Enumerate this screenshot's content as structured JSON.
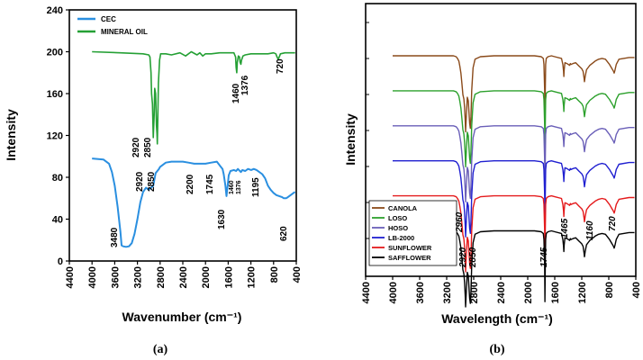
{
  "chart_data": [
    {
      "type": "line",
      "panel_label": "(a)",
      "xlabel": "Wavenumber (cm⁻¹)",
      "ylabel": "Intensity",
      "xlim": [
        4400,
        400
      ],
      "ylim": [
        0,
        240
      ],
      "xticks": [
        4400,
        4000,
        3600,
        3200,
        2800,
        2400,
        2000,
        1600,
        1200,
        800,
        400
      ],
      "yticks": [
        0,
        40,
        80,
        120,
        160,
        200,
        240
      ],
      "grid": false,
      "legend": "top-left",
      "series": [
        {
          "name": "CEC",
          "color": "#2a8fe0",
          "x": [
            4000,
            3800,
            3700,
            3650,
            3600,
            3550,
            3500,
            3480,
            3450,
            3400,
            3350,
            3300,
            3250,
            3200,
            3150,
            3100,
            3050,
            3000,
            2960,
            2920,
            2900,
            2880,
            2850,
            2820,
            2800,
            2700,
            2600,
            2400,
            2300,
            2200,
            2100,
            2000,
            1900,
            1800,
            1745,
            1700,
            1680,
            1650,
            1630,
            1610,
            1590,
            1560,
            1500,
            1460,
            1430,
            1376,
            1350,
            1300,
            1250,
            1195,
            1150,
            1100,
            1000,
            950,
            900,
            850,
            800,
            750,
            700,
            650,
            620,
            580,
            550,
            500,
            450,
            420
          ],
          "y": [
            98,
            97,
            93,
            85,
            72,
            52,
            28,
            15,
            14,
            13.5,
            14,
            17,
            26,
            40,
            56,
            66,
            70,
            68,
            70,
            72,
            78,
            84,
            86,
            88,
            90,
            94,
            95,
            95,
            94,
            93,
            93,
            93,
            94,
            95,
            91,
            88,
            83,
            72,
            62,
            72,
            82,
            86,
            87,
            86,
            88,
            85,
            87,
            86,
            88,
            87,
            88,
            87,
            83,
            79,
            72,
            68,
            65,
            63,
            62,
            61,
            60,
            60,
            61,
            63,
            65,
            66
          ]
        },
        {
          "name": "MINERAL OIL",
          "color": "#25a035",
          "x": [
            4000,
            3500,
            3100,
            3000,
            2980,
            2960,
            2950,
            2935,
            2920,
            2905,
            2895,
            2880,
            2865,
            2855,
            2850,
            2845,
            2830,
            2810,
            2790,
            2700,
            2600,
            2450,
            2350,
            2250,
            2150,
            2100,
            2050,
            2000,
            1900,
            1750,
            1600,
            1500,
            1470,
            1460,
            1450,
            1440,
            1420,
            1400,
            1390,
            1376,
            1365,
            1340,
            1300,
            1200,
            1000,
            900,
            800,
            760,
            740,
            720,
            700,
            680,
            600,
            500,
            420
          ],
          "y": [
            200,
            199,
            198,
            197,
            195,
            180,
            160,
            150,
            118,
            140,
            165,
            160,
            130,
            122,
            112,
            125,
            170,
            192,
            198,
            198,
            197,
            199,
            196,
            200,
            197,
            199,
            196,
            198,
            198,
            199,
            199,
            199,
            195,
            185,
            180,
            190,
            196,
            195,
            190,
            188,
            192,
            196,
            197,
            198,
            198,
            198,
            199,
            198,
            195,
            193,
            195,
            198,
            199,
            199,
            199
          ]
        }
      ],
      "annotations": [
        "3480",
        "2920",
        "2850",
        "2200",
        "1745",
        "1630",
        "1460",
        "1376",
        "1195",
        "620",
        "2920",
        "2850",
        "1460",
        "1376",
        "720"
      ]
    },
    {
      "type": "line",
      "panel_label": "(b)",
      "xlabel": "Wavelength (cm⁻¹)",
      "ylabel": "Intensity",
      "xlim": [
        4400,
        400
      ],
      "xticks": [
        4400,
        4000,
        3600,
        3200,
        2800,
        2400,
        2000,
        1600,
        1200,
        800,
        400
      ],
      "yticks": [],
      "grid": false,
      "legend": "bottom-left",
      "stacked_offset_spectra": true,
      "x": [
        4000,
        3500,
        3200,
        3100,
        3060,
        3040,
        3020,
        3005,
        2990,
        2975,
        2960,
        2945,
        2935,
        2925,
        2920,
        2910,
        2895,
        2880,
        2870,
        2860,
        2850,
        2840,
        2830,
        2810,
        2780,
        2700,
        2500,
        2200,
        2000,
        1900,
        1800,
        1770,
        1760,
        1750,
        1745,
        1740,
        1735,
        1725,
        1700,
        1650,
        1600,
        1500,
        1480,
        1470,
        1465,
        1460,
        1450,
        1420,
        1380,
        1370,
        1360,
        1330,
        1290,
        1240,
        1200,
        1180,
        1165,
        1160,
        1150,
        1130,
        1100,
        1080,
        1000,
        950,
        900,
        850,
        790,
        760,
        730,
        720,
        710,
        690,
        650,
        500,
        420
      ],
      "y": [
        0,
        0,
        0,
        0,
        -1,
        -3,
        -6,
        -12,
        -20,
        -32,
        -45,
        -50,
        -60,
        -75,
        -88,
        -70,
        -48,
        -52,
        -66,
        -78,
        -84,
        -70,
        -40,
        -14,
        -4,
        -1,
        0,
        0,
        0,
        0,
        -1,
        -3,
        -10,
        -40,
        -82,
        -40,
        -10,
        -3,
        -1,
        0,
        -1,
        -3,
        -10,
        -18,
        -24,
        -16,
        -8,
        -9,
        -11,
        -9,
        -10,
        -9,
        -8,
        -12,
        -15,
        -18,
        -26,
        -30,
        -24,
        -16,
        -13,
        -11,
        -6,
        -4,
        -3,
        -4,
        -10,
        -14,
        -18,
        -20,
        -17,
        -10,
        -4,
        -2,
        -2
      ],
      "series": [
        {
          "name": "CANOLA",
          "color": "#8a4a1a",
          "baseline": 6
        },
        {
          "name": "LOSO",
          "color": "#2ca02c",
          "baseline": 5
        },
        {
          "name": "HOSO",
          "color": "#6a5fb8",
          "baseline": 4
        },
        {
          "name": "LB-2000",
          "color": "#1f1fd0",
          "baseline": 3
        },
        {
          "name": "SUNFLOWER",
          "color": "#e41a1c",
          "baseline": 2
        },
        {
          "name": "SAFFLOWER",
          "color": "#000000",
          "baseline": 1
        }
      ],
      "annotations": [
        "2960",
        "2920",
        "2850",
        "1745",
        "1465",
        "1160",
        "720"
      ]
    }
  ]
}
